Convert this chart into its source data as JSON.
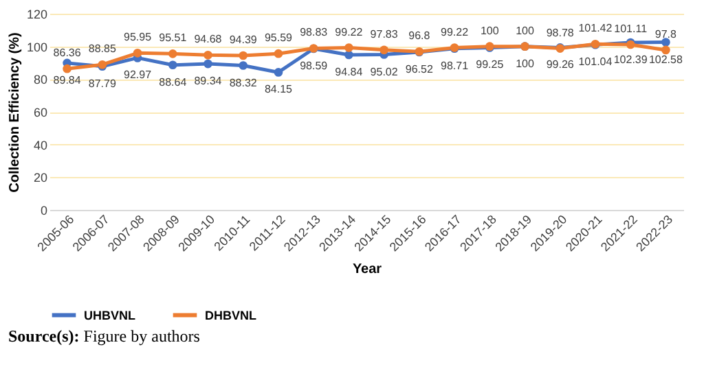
{
  "chart_data": {
    "type": "line",
    "xlabel": "Year",
    "ylabel": "Collection Efficiency (%)",
    "categories": [
      "2005-06",
      "2006-07",
      "2007-08",
      "2008-09",
      "2009-10",
      "2010-11",
      "2011-12",
      "2012-13",
      "2013-14",
      "2014-15",
      "2015-16",
      "2016-17",
      "2017-18",
      "2018-19",
      "2019-20",
      "2020-21",
      "2021-22",
      "2022-23"
    ],
    "series": [
      {
        "name": "UHBVNL",
        "color": "#4472c4",
        "values": [
          89.84,
          87.79,
          92.97,
          88.64,
          89.34,
          88.32,
          84.15,
          98.59,
          94.84,
          95.02,
          96.52,
          98.71,
          99.25,
          100,
          99.26,
          101.04,
          102.39,
          102.58
        ]
      },
      {
        "name": "DHBVNL",
        "color": "#ed7d31",
        "values": [
          86.36,
          88.85,
          95.95,
          95.51,
          94.68,
          94.39,
          95.59,
          98.83,
          99.22,
          97.83,
          96.8,
          99.22,
          100,
          100,
          98.78,
          101.42,
          101.11,
          97.8
        ]
      }
    ],
    "ylim": [
      0,
      120
    ],
    "yticks": [
      0,
      20,
      40,
      60,
      80,
      100,
      120
    ],
    "grid": "y",
    "legend": "bottom",
    "marker": "circle",
    "line_style": "solid",
    "data_labels": true,
    "annotations": [
      "Source(s): Figure by authors"
    ]
  }
}
